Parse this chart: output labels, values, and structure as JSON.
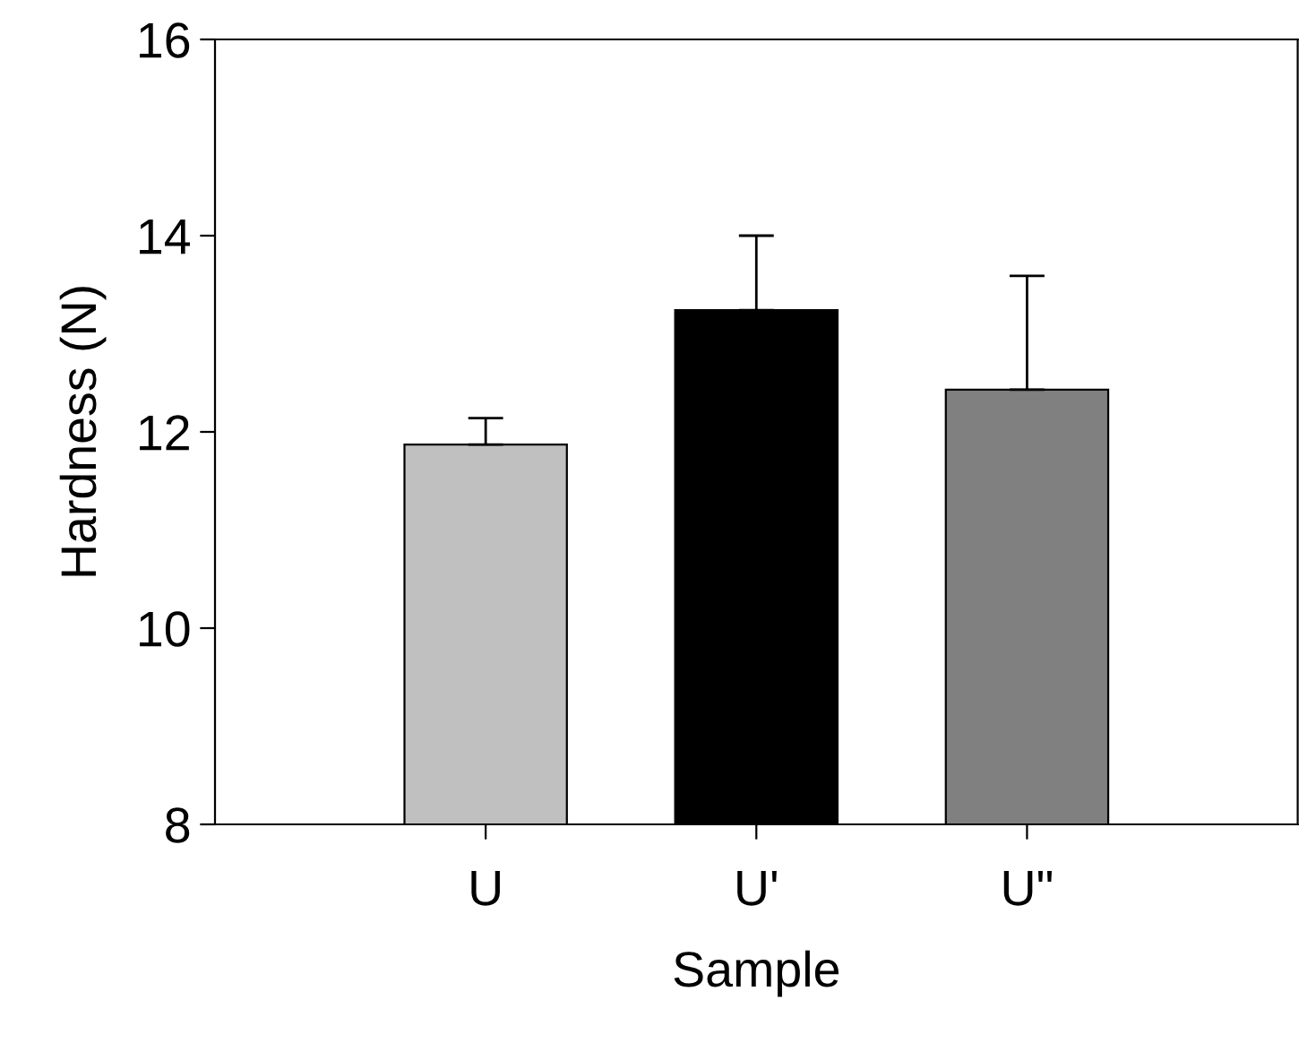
{
  "chart_data": {
    "type": "bar",
    "xlabel": "Sample",
    "ylabel": "Hardness (N)",
    "categories": [
      "U",
      "U'",
      "U\""
    ],
    "values": [
      11.87,
      13.24,
      12.43
    ],
    "colors": [
      "#c0c0c0",
      "#000000",
      "#808080"
    ],
    "errors": [
      [
        11.87,
        12.14
      ],
      [
        13.24,
        14.0
      ],
      [
        12.43,
        13.59
      ]
    ],
    "ylim": [
      8,
      16
    ],
    "yticks": [
      8,
      10,
      12,
      14,
      16
    ],
    "grid": false,
    "legend": false
  }
}
